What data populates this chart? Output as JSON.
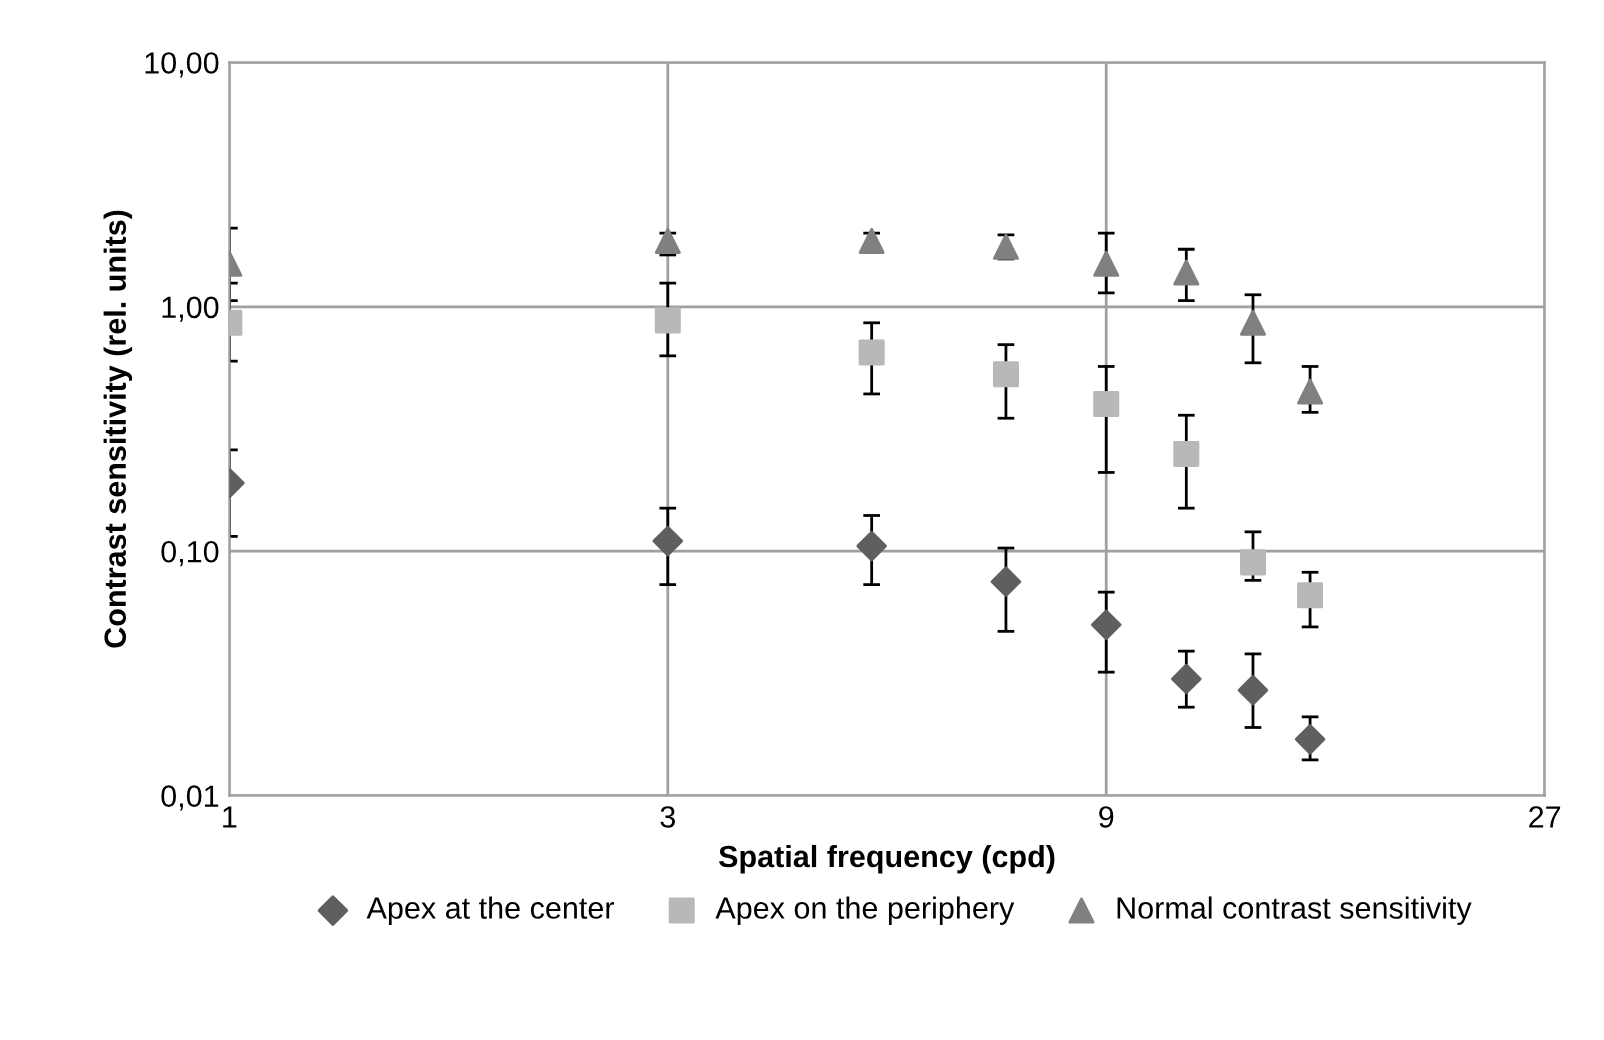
{
  "chart_data": {
    "type": "scatter",
    "xlabel": "Spatial frequency (cpd)",
    "ylabel": "Contrast sensitivity (rel. units)",
    "log": "xy",
    "grid": true,
    "legend": "bottom",
    "xlim": [
      1,
      27
    ],
    "xticks": [
      1,
      3,
      9,
      27
    ],
    "ylim": [
      0.01,
      10
    ],
    "yticks": [
      {
        "value": 0.01,
        "label": "0,01"
      },
      {
        "value": 0.1,
        "label": "0,10"
      },
      {
        "value": 1,
        "label": "1,00"
      },
      {
        "value": 10,
        "label": "10,00"
      }
    ],
    "x": [
      1,
      3,
      5,
      7,
      9,
      11,
      13,
      15
    ],
    "series": [
      {
        "name": "Apex at the center",
        "color": "#5f5f5f",
        "marker": "diamond",
        "values": [
          0.19,
          0.11,
          0.105,
          0.075,
          0.05,
          0.03,
          0.027,
          0.017
        ],
        "errors": [
          [
            0.115,
            0.26
          ],
          [
            0.073,
            0.15
          ],
          [
            0.073,
            0.14
          ],
          [
            0.047,
            0.103
          ],
          [
            0.032,
            0.068
          ],
          [
            0.023,
            0.039
          ],
          [
            0.019,
            0.038
          ],
          [
            0.014,
            0.021
          ]
        ]
      },
      {
        "name": "Apex on the periphery",
        "color": "#b8b8b8",
        "marker": "square",
        "values": [
          0.86,
          0.88,
          0.65,
          0.53,
          0.4,
          0.25,
          0.09,
          0.066
        ],
        "errors": [
          [
            0.6,
            1.25
          ],
          [
            0.63,
            1.25
          ],
          [
            0.44,
            0.86
          ],
          [
            0.35,
            0.7
          ],
          [
            0.21,
            0.57
          ],
          [
            0.15,
            0.36
          ],
          [
            0.076,
            0.12
          ],
          [
            0.049,
            0.082
          ]
        ]
      },
      {
        "name": "Normal contrast sensitivity",
        "color": "#808080",
        "marker": "triangle",
        "values": [
          1.5,
          1.86,
          1.86,
          1.76,
          1.5,
          1.38,
          0.86,
          0.45
        ],
        "errors": [
          [
            1.06,
            2.1
          ],
          [
            1.63,
            2.0
          ],
          [
            1.69,
            2.0
          ],
          [
            1.57,
            1.97
          ],
          [
            1.14,
            2.0
          ],
          [
            1.06,
            1.72
          ],
          [
            0.59,
            1.12
          ],
          [
            0.37,
            0.57
          ]
        ]
      }
    ]
  }
}
